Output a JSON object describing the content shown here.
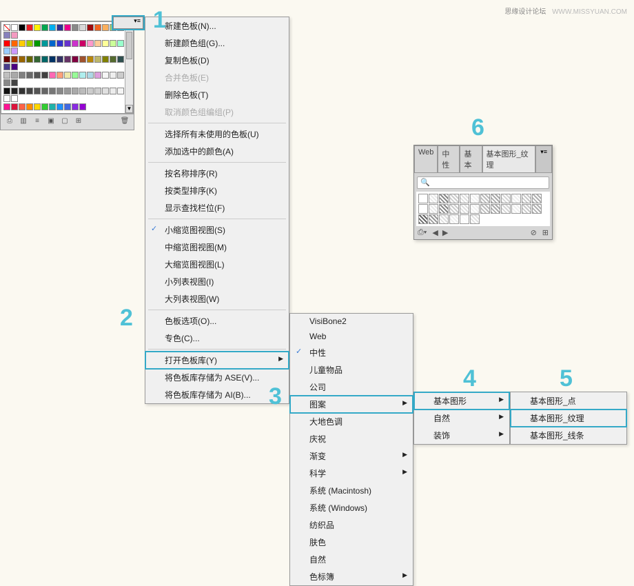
{
  "watermark": {
    "main": "思缘设计论坛",
    "url": "WWW.MISSYUAN.COM"
  },
  "swatches": {
    "row1": [
      "none",
      "#ffffff",
      "#000000",
      "#ed1c24",
      "#fff200",
      "#00a651",
      "#00aeef",
      "#2e3192",
      "#ec008c",
      "#898989",
      "#d8d8d8",
      "#9e0b0f",
      "#f26522",
      "#fbaf5d",
      "#acd373",
      "#00a99d",
      "#8781bd",
      "#f49ac1"
    ],
    "row2": [
      "#ff0000",
      "#ff6600",
      "#ffcc00",
      "#99cc00",
      "#009900",
      "#009999",
      "#0066cc",
      "#3333cc",
      "#6633cc",
      "#cc33cc",
      "#cc0066",
      "#ff99cc",
      "#ffcc99",
      "#ffff99",
      "#ccff99",
      "#99ffcc",
      "#99ccff",
      "#cc99ff"
    ],
    "row3": [
      "#660000",
      "#993300",
      "#996600",
      "#666600",
      "#336633",
      "#006666",
      "#003366",
      "#333366",
      "#663366",
      "#800040",
      "#a0522d",
      "#b8860b",
      "#bdb76b",
      "#808000",
      "#556b2f",
      "#2f4f4f",
      "#483d8b",
      "#4b0082"
    ],
    "row4": [
      "#c0c0c0",
      "#a9a9a9",
      "#808080",
      "#696969",
      "#555555",
      "#404040",
      "#ff69b4",
      "#ffa07a",
      "#eee8aa",
      "#98fb98",
      "#afeeee",
      "#add8e6",
      "#dda0dd",
      "#f5f5f5",
      "#eeeeee",
      "#cccccc",
      "#888888",
      "#444444"
    ],
    "row5": [
      "#111111",
      "#222222",
      "#333333",
      "#444444",
      "#555555",
      "#666666",
      "#777777",
      "#888888",
      "#999999",
      "#aaaaaa",
      "#bbbbbb",
      "#cccccc",
      "#d0d0d0",
      "#e0e0e0",
      "#ececec",
      "#f4f4f4",
      "#fafafa",
      "#ffffff"
    ],
    "row6": [
      "#ff1493",
      "#dc143c",
      "#ff6347",
      "#ff8c00",
      "#ffd700",
      "#32cd32",
      "#20b2aa",
      "#1e90ff",
      "#4169e1",
      "#8a2be2",
      "#9400d3"
    ]
  },
  "menu1": {
    "items": [
      {
        "label": "新建色板(N)...",
        "type": "item"
      },
      {
        "label": "新建颜色组(G)...",
        "type": "item"
      },
      {
        "label": "复制色板(D)",
        "type": "item"
      },
      {
        "label": "合并色板(E)",
        "type": "disabled"
      },
      {
        "label": "删除色板(T)",
        "type": "item"
      },
      {
        "label": "取消颜色组编组(P)",
        "type": "disabled"
      },
      {
        "type": "sep"
      },
      {
        "label": "选择所有未使用的色板(U)",
        "type": "item"
      },
      {
        "label": "添加选中的颜色(A)",
        "type": "item"
      },
      {
        "type": "sep"
      },
      {
        "label": "按名称排序(R)",
        "type": "item"
      },
      {
        "label": "按类型排序(K)",
        "type": "item"
      },
      {
        "label": "显示查找栏位(F)",
        "type": "item"
      },
      {
        "type": "sep"
      },
      {
        "label": "小缩览图视图(S)",
        "type": "checked"
      },
      {
        "label": "中缩览图视图(M)",
        "type": "item"
      },
      {
        "label": "大缩览图视图(L)",
        "type": "item"
      },
      {
        "label": "小列表视图(I)",
        "type": "item"
      },
      {
        "label": "大列表视图(W)",
        "type": "item"
      },
      {
        "type": "sep"
      },
      {
        "label": "色板选项(O)...",
        "type": "item"
      },
      {
        "label": "专色(C)...",
        "type": "item"
      },
      {
        "type": "sep"
      },
      {
        "label": "打开色板库(Y)",
        "type": "sub",
        "hi": true
      },
      {
        "label": "将色板库存储为 ASE(V)...",
        "type": "item"
      },
      {
        "label": "将色板库存储为 AI(B)...",
        "type": "item"
      }
    ]
  },
  "menu2": {
    "items": [
      {
        "label": "VisiBone2",
        "type": "item"
      },
      {
        "label": "Web",
        "type": "item"
      },
      {
        "label": "中性",
        "type": "checked"
      },
      {
        "label": "儿童物品",
        "type": "item"
      },
      {
        "label": "公司",
        "type": "item"
      },
      {
        "label": "图案",
        "type": "sub",
        "hi": true
      },
      {
        "label": "大地色调",
        "type": "item"
      },
      {
        "label": "庆祝",
        "type": "item"
      },
      {
        "label": "渐变",
        "type": "sub"
      },
      {
        "label": "科学",
        "type": "sub"
      },
      {
        "label": "系统 (Macintosh)",
        "type": "item"
      },
      {
        "label": "系统 (Windows)",
        "type": "item"
      },
      {
        "label": "纺织品",
        "type": "item"
      },
      {
        "label": "肤色",
        "type": "item"
      },
      {
        "label": "自然",
        "type": "item"
      },
      {
        "label": "色标簿",
        "type": "sub"
      }
    ]
  },
  "menu3": {
    "items": [
      {
        "label": "基本图形",
        "type": "sub",
        "hi": true
      },
      {
        "label": "自然",
        "type": "sub"
      },
      {
        "label": "装饰",
        "type": "sub"
      }
    ]
  },
  "menu4": {
    "items": [
      {
        "label": "基本图形_点",
        "type": "item"
      },
      {
        "label": "基本图形_纹理",
        "type": "item",
        "hi": true
      },
      {
        "label": "基本图形_线条",
        "type": "item"
      }
    ]
  },
  "patternPanel": {
    "tabs": [
      "Web",
      "中性",
      "基本",
      "基本图形_纹理"
    ],
    "activeTab": 3,
    "searchPlaceholder": "",
    "patterns": [
      "#fff",
      "#e8e8e8",
      "#888",
      "#ccc",
      "#ddd",
      "#f0f0f0",
      "#bbb",
      "#aaa",
      "#d4d4d4",
      "#eee",
      "#c8c8c8",
      "#b0b0b0",
      "#fff",
      "#e8e8e8",
      "#888",
      "#ccc",
      "#ddd",
      "#f0f0f0",
      "#bbb",
      "#aaa",
      "#d4d4d4",
      "#eee",
      "#c8c8c8",
      "#b0b0b0",
      "#666",
      "#999",
      "#ddd",
      "#eee",
      "#fafafa",
      "#e0e0e0"
    ]
  },
  "numbers": {
    "1": "1",
    "2": "2",
    "3": "3",
    "4": "4",
    "5": "5",
    "6": "6"
  },
  "colors": {
    "highlight": "#34a9c7",
    "numColor": "#4fc1d6"
  }
}
